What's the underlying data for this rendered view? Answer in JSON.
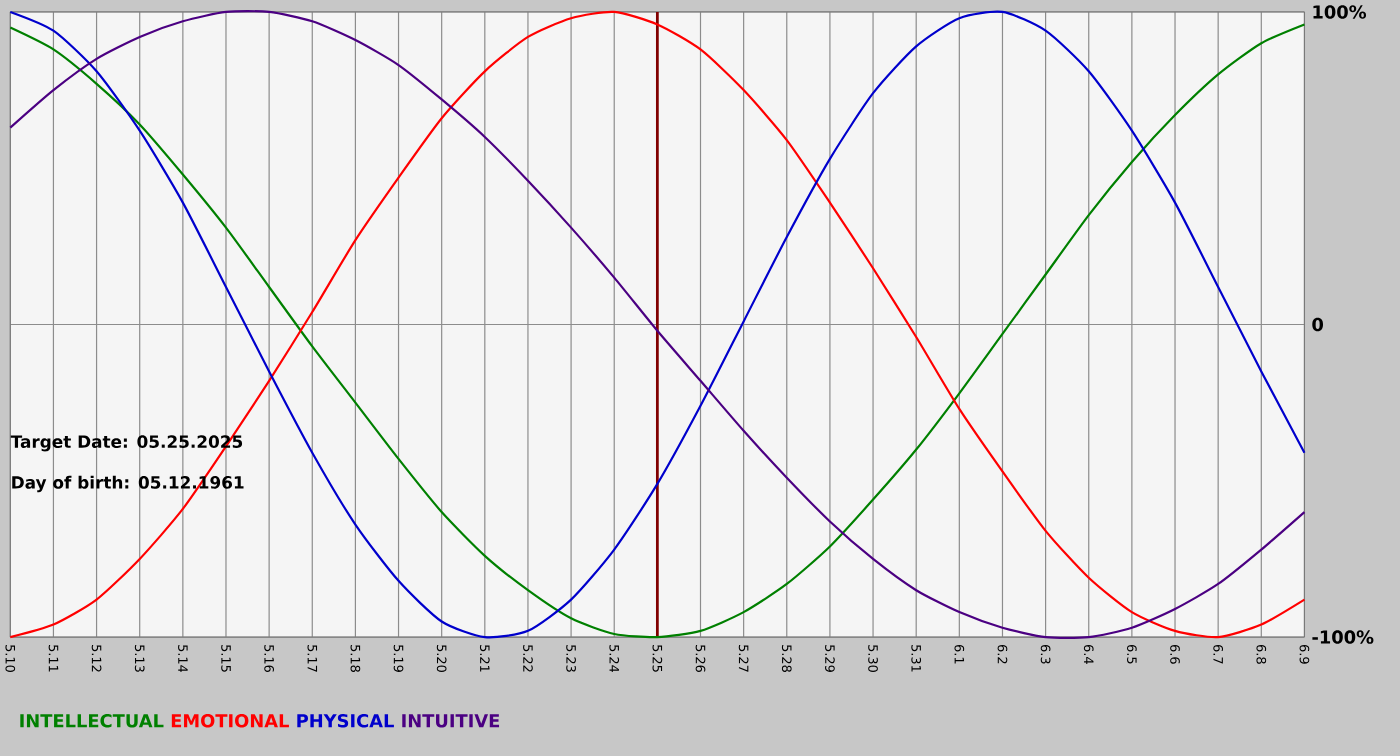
{
  "chart_data": {
    "type": "line",
    "categories": [
      "5.10",
      "5.11",
      "5.12",
      "5.13",
      "5.14",
      "5.15",
      "5.16",
      "5.17",
      "5.18",
      "5.19",
      "5.20",
      "5.21",
      "5.22",
      "5.23",
      "5.24",
      "5.25",
      "5.26",
      "5.27",
      "5.28",
      "5.29",
      "5.30",
      "5.31",
      "6.1",
      "6.2",
      "6.3",
      "6.4",
      "6.5",
      "6.6",
      "6.7",
      "6.8",
      "6.9"
    ],
    "series": [
      {
        "name": "INTELLECTUAL",
        "color": "#008000",
        "values": [
          95,
          88,
          77,
          64,
          48,
          31,
          12,
          -7,
          -25,
          -43,
          -60,
          -74,
          -85,
          -94,
          -99,
          -100,
          -98,
          -92,
          -83,
          -71,
          -56,
          -40,
          -22,
          -3,
          16,
          35,
          52,
          67,
          80,
          90,
          96
        ]
      },
      {
        "name": "EMOTIONAL",
        "color": "#ff0000",
        "values": [
          -100,
          -96,
          -88,
          -75,
          -59,
          -39,
          -18,
          4,
          27,
          47,
          66,
          81,
          92,
          98,
          100,
          96,
          88,
          75,
          59,
          39,
          18,
          -4,
          -27,
          -47,
          -66,
          -81,
          -92,
          -98,
          -100,
          -96,
          -88
        ]
      },
      {
        "name": "PHYSICAL",
        "color": "#0000cc",
        "values": [
          100,
          94,
          81,
          62,
          39,
          12,
          -15,
          -41,
          -64,
          -82,
          -95,
          -100,
          -98,
          -88,
          -72,
          -51,
          -26,
          1,
          28,
          53,
          74,
          89,
          98,
          100,
          94,
          81,
          62,
          39,
          12,
          -15,
          -41
        ]
      },
      {
        "name": "INTUITIVE",
        "color": "#4b0082",
        "values": [
          63,
          75,
          85,
          92,
          97,
          100,
          100,
          97,
          91,
          83,
          72,
          60,
          46,
          31,
          15,
          -2,
          -18,
          -34,
          -49,
          -63,
          -75,
          -85,
          -92,
          -97,
          -100,
          -100,
          -97,
          -91,
          -83,
          -72,
          -60
        ]
      }
    ],
    "ylim": [
      -100,
      100
    ],
    "yticks": [
      {
        "value": 100,
        "label": "100%"
      },
      0,
      {
        "value": -100,
        "label": "-100%"
      }
    ],
    "grid": true,
    "legend": "bottom",
    "ref_lines": [
      {
        "axis": "x",
        "value": "5.25",
        "color": "#800000"
      }
    ],
    "annotations": [
      "Target Date: 05.25.2025",
      "Day of birth: 05.12.1961"
    ]
  }
}
